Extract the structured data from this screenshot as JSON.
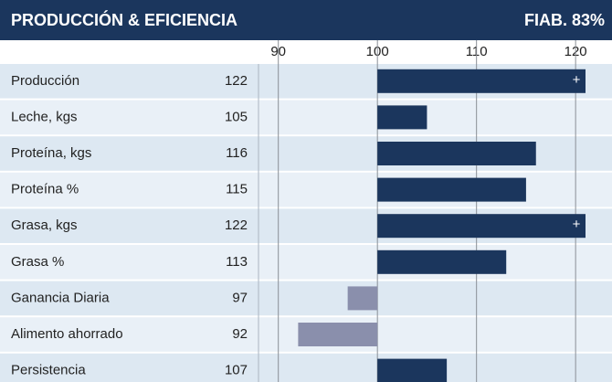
{
  "chart_data": {
    "type": "bar",
    "orientation": "horizontal",
    "title": "PRODUCCIÓN & EFICIENCIA",
    "reliability": "FIAB. 83%",
    "categories": [
      "Producción",
      "Leche, kgs",
      "Proteína, kgs",
      "Proteína %",
      "Grasa, kgs",
      "Grasa %",
      "Ganancia Diaria",
      "Alimento ahorrado",
      "Persistencia"
    ],
    "values": [
      122,
      105,
      116,
      115,
      122,
      113,
      97,
      92,
      107
    ],
    "baseline": 100,
    "color_above": "#1b365d",
    "color_below": "#8a8fac",
    "overflow_marker": "+",
    "xlim": [
      88,
      121
    ],
    "xticks": [
      90,
      100,
      110,
      120
    ],
    "grid": true
  }
}
